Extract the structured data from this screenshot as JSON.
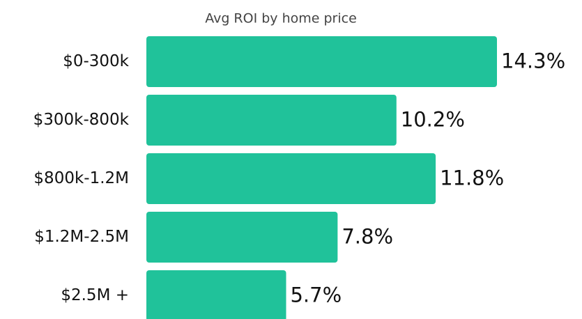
{
  "chart_data": {
    "type": "bar",
    "orientation": "horizontal",
    "title": "Avg ROI by home price",
    "categories": [
      "$0-300k",
      "$300k-800k",
      "$800k-1.2M",
      "$1.2M-2.5M",
      "$2.5M +"
    ],
    "values": [
      14.3,
      10.2,
      11.8,
      7.8,
      5.7
    ],
    "value_labels": [
      "14.3%",
      "10.2%",
      "11.8%",
      "7.8%",
      "5.7%"
    ],
    "color": "#20c29a"
  }
}
